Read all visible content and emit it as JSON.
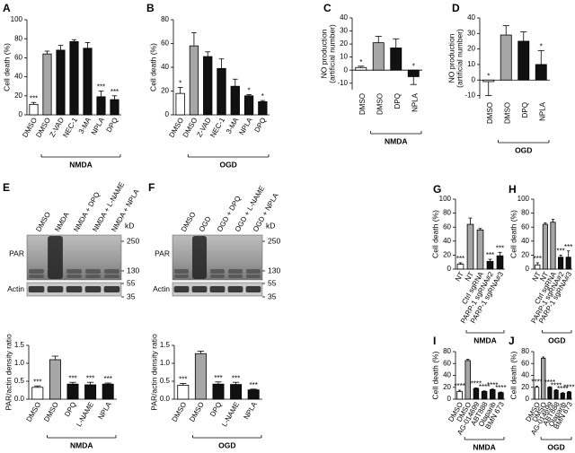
{
  "chart_data": [
    {
      "type": "bar",
      "panel": "A",
      "y_label": [
        "Cell death (%)"
      ],
      "categories": [
        "DMSO",
        "DMSO",
        "Z-VAD",
        "NEC-1",
        "3-MA",
        "NPLA",
        "DPQ"
      ],
      "values": [
        11,
        64,
        68,
        77,
        70,
        19,
        16
      ],
      "errors": [
        2,
        3,
        5,
        2,
        6,
        6,
        4
      ],
      "colors": [
        "#ffffff",
        "#a6a6a6",
        "#111111",
        "#111111",
        "#111111",
        "#111111",
        "#111111"
      ],
      "annotations": [
        "***",
        null,
        null,
        null,
        null,
        "***",
        "***"
      ],
      "ylim": [
        0,
        100
      ],
      "yticks": [
        0,
        20,
        40,
        60,
        80,
        100
      ],
      "group_label": "NMDA"
    },
    {
      "type": "bar",
      "panel": "B",
      "y_label": [
        "Cell death (%)"
      ],
      "categories": [
        "DMSO",
        "DMSO",
        "Z-VAD",
        "NEC-1",
        "3-MA",
        "NPLA",
        "DPQ"
      ],
      "values": [
        18,
        58,
        49,
        39,
        24,
        16,
        11
      ],
      "errors": [
        5,
        11,
        4,
        8,
        6,
        1,
        1
      ],
      "colors": [
        "#ffffff",
        "#a6a6a6",
        "#111111",
        "#111111",
        "#111111",
        "#111111",
        "#111111"
      ],
      "annotations": [
        "*",
        null,
        null,
        null,
        null,
        "*",
        "*"
      ],
      "ylim": [
        0,
        80
      ],
      "yticks": [
        0,
        20,
        40,
        60,
        80
      ],
      "group_label": "OGD"
    },
    {
      "type": "bar",
      "panel": "C",
      "y_label": [
        "NO production",
        "(artificial number)"
      ],
      "categories": [
        "DMSO",
        "DMSO",
        "DPQ",
        "NPLA"
      ],
      "values": [
        2,
        21,
        17,
        -5
      ],
      "errors": [
        1,
        5,
        7,
        6
      ],
      "colors": [
        "#ffffff",
        "#a6a6a6",
        "#111111",
        "#111111"
      ],
      "annotations": [
        "*",
        null,
        null,
        "*"
      ],
      "ylim": [
        -15,
        40
      ],
      "yticks": [
        -10,
        0,
        10,
        20,
        30,
        40
      ],
      "group_label": "NMDA"
    },
    {
      "type": "bar",
      "panel": "D",
      "y_label": [
        "NO production",
        "(artificial number)"
      ],
      "categories": [
        "DMSO",
        "DMSO",
        "DPQ",
        "NPLA"
      ],
      "values": [
        -1,
        29,
        25,
        10
      ],
      "errors": [
        9,
        6,
        6,
        9
      ],
      "colors": [
        "#ffffff",
        "#a6a6a6",
        "#111111",
        "#111111"
      ],
      "annotations": [
        "*",
        null,
        null,
        "*"
      ],
      "ylim": [
        -12,
        40
      ],
      "yticks": [
        -10,
        0,
        10,
        20,
        30,
        40
      ],
      "group_label": "OGD"
    },
    {
      "type": "bar",
      "y_label": [
        "PAR/actin density ratio"
      ],
      "categories": [
        "DMSO",
        "DMSO",
        "DPQ",
        "L-NAME",
        "NPLA"
      ],
      "values": [
        0.33,
        1.1,
        0.42,
        0.4,
        0.42
      ],
      "errors": [
        0.04,
        0.1,
        0.05,
        0.07,
        0.03
      ],
      "colors": [
        "#ffffff",
        "#a6a6a6",
        "#111111",
        "#111111",
        "#111111"
      ],
      "annotations": [
        "***",
        null,
        "***",
        "***",
        "***"
      ],
      "ylim": [
        0,
        1.5
      ],
      "yticks": [
        {
          "value": 0,
          "label": "0.0"
        },
        0.5,
        {
          "value": 1,
          "label": "1.0"
        },
        1.5
      ],
      "group_label": "NMDA"
    },
    {
      "type": "bar",
      "y_label": [
        "PAR/actin density ratio"
      ],
      "categories": [
        "DMSO",
        "DMSO",
        "DPQ",
        "L-NAME",
        "NPLA"
      ],
      "values": [
        0.39,
        1.27,
        0.42,
        0.41,
        0.26
      ],
      "errors": [
        0.05,
        0.07,
        0.06,
        0.06,
        0.02
      ],
      "colors": [
        "#ffffff",
        "#a6a6a6",
        "#111111",
        "#111111",
        "#111111"
      ],
      "annotations": [
        "***",
        null,
        "***",
        "***",
        "***"
      ],
      "ylim": [
        0,
        1.5
      ],
      "yticks": [
        {
          "value": 0,
          "label": "0.0"
        },
        0.5,
        {
          "value": 1,
          "label": "1.0"
        },
        1.5
      ],
      "group_label": "OGD"
    },
    {
      "type": "bar",
      "panel": "G",
      "y_label": [
        "Cell death (%)"
      ],
      "categories": [
        "NT",
        "NT",
        "Ctrl sgRNA",
        "PARP-1 sgRNA#2",
        "PARP-1 sgRNA#3"
      ],
      "values": [
        7,
        64,
        56,
        11,
        19
      ],
      "errors": [
        2,
        9,
        2,
        3,
        5
      ],
      "colors": [
        "#ffffff",
        "#a6a6a6",
        "#a6a6a6",
        "#111111",
        "#111111"
      ],
      "annotations": [
        "***",
        null,
        null,
        "***",
        "***"
      ],
      "ylim": [
        0,
        100
      ],
      "yticks": [
        0,
        20,
        40,
        60,
        80,
        100
      ],
      "group_label": "NMDA"
    },
    {
      "type": "bar",
      "panel": "H",
      "y_label": [
        "Cell death (%)"
      ],
      "categories": [
        "NT",
        "NT",
        "Ctrl sgRNA",
        "PARP-1 sgRNA#2",
        "PARP-1 sgRNA#3"
      ],
      "values": [
        6,
        64,
        67,
        17,
        17
      ],
      "errors": [
        3,
        2,
        4,
        3,
        9
      ],
      "colors": [
        "#ffffff",
        "#a6a6a6",
        "#a6a6a6",
        "#111111",
        "#111111"
      ],
      "annotations": [
        "***",
        null,
        null,
        "***",
        "***"
      ],
      "ylim": [
        0,
        100
      ],
      "yticks": [
        0,
        20,
        40,
        60,
        80,
        100
      ],
      "group_label": "OGD"
    },
    {
      "type": "bar",
      "panel": "I",
      "y_label": [
        "Cell death (%)"
      ],
      "categories": [
        "DMSO",
        "DMSO",
        "AG-014699",
        "ABT888",
        "Olaparib",
        "BMN 673"
      ],
      "values": [
        13,
        65,
        18,
        13,
        16,
        11
      ],
      "errors": [
        2,
        2,
        1,
        1,
        1,
        1
      ],
      "colors": [
        "#ffffff",
        "#a6a6a6",
        "#111111",
        "#111111",
        "#111111",
        "#111111"
      ],
      "annotations": [
        "****",
        null,
        "****",
        "****",
        "****",
        "****"
      ],
      "ylim": [
        0,
        80
      ],
      "yticks": [
        0,
        20,
        40,
        60,
        80
      ],
      "group_label": "NMDA"
    },
    {
      "type": "bar",
      "panel": "J",
      "y_label": [
        "Cell death (%)"
      ],
      "categories": [
        "DMSO",
        "DMSO",
        "AG-014699",
        "ABT888",
        "Olaparib",
        "BMN 673"
      ],
      "values": [
        20,
        69,
        20,
        15,
        10,
        12
      ],
      "errors": [
        2,
        2,
        1,
        1,
        1,
        1
      ],
      "colors": [
        "#ffffff",
        "#a6a6a6",
        "#111111",
        "#111111",
        "#111111",
        "#111111"
      ],
      "annotations": [
        "****",
        null,
        "****",
        "****",
        "****",
        "****"
      ],
      "ylim": [
        0,
        80
      ],
      "yticks": [
        0,
        20,
        40,
        60,
        80
      ],
      "group_label": "OGD"
    }
  ],
  "blots": [
    {
      "panel": "E",
      "lanes": [
        "DMSO",
        "NMDA",
        "NMDA + DPQ",
        "NMDA + L-NAME",
        "NMDA + NPLA"
      ],
      "rows": [
        "PAR",
        "Actin"
      ],
      "unit": "kD",
      "markers": [
        250,
        130,
        55,
        35
      ]
    },
    {
      "panel": "F",
      "lanes": [
        "DMSO",
        "OGD",
        "OGD + DPQ",
        "OGD + L-NAME",
        "OGD + NPLA"
      ],
      "rows": [
        "PAR",
        "Actin"
      ],
      "unit": "kD",
      "markers": [
        250,
        130,
        55,
        35
      ]
    }
  ]
}
